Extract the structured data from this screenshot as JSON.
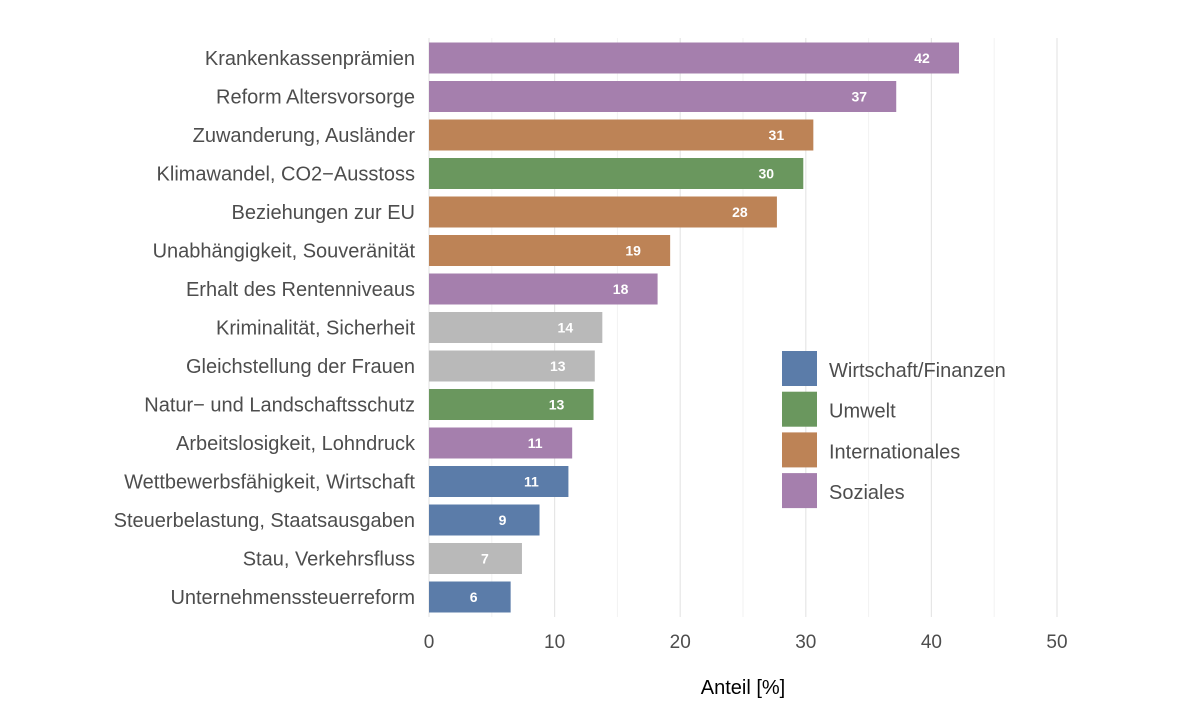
{
  "chart_data": {
    "type": "bar",
    "orientation": "horizontal",
    "title": "",
    "xlabel": "Anteil [%]",
    "ylabel": "",
    "xlim": [
      0,
      50
    ],
    "xticks": [
      0,
      10,
      20,
      30,
      40,
      50
    ],
    "grid": true,
    "legend_position": "right",
    "legend": [
      {
        "name": "Wirtschaft/Finanzen",
        "color": "#5b7ca9"
      },
      {
        "name": "Umwelt",
        "color": "#6a975e"
      },
      {
        "name": "Internationales",
        "color": "#bd8356"
      },
      {
        "name": "Soziales",
        "color": "#a57fad"
      }
    ],
    "other_color": "#b9b9b9",
    "categories": [
      "Krankenkassenprämien",
      "Reform Altersvorsorge",
      "Zuwanderung, Ausländer",
      "Klimawandel, CO2−Ausstoss",
      "Beziehungen zur EU",
      "Unabhängigkeit, Souveränität",
      "Erhalt des Rentenniveaus",
      "Kriminalität, Sicherheit",
      "Gleichstellung der Frauen",
      "Natur− und Landschaftsschutz",
      "Arbeitslosigkeit, Lohndruck",
      "Wettbewerbsfähigkeit, Wirtschaft",
      "Steuerbelastung, Staatsausgaben",
      "Stau, Verkehrsfluss",
      "Unternehmenssteuerreform"
    ],
    "values": [
      42.2,
      37.2,
      30.6,
      29.8,
      27.7,
      19.2,
      18.2,
      13.8,
      13.2,
      13.1,
      11.4,
      11.1,
      8.8,
      7.4,
      6.5
    ],
    "labels": [
      "42",
      "37",
      "31",
      "30",
      "28",
      "19",
      "18",
      "14",
      "13",
      "13",
      "11",
      "11",
      "9",
      "7",
      "6"
    ],
    "groups": [
      "Soziales",
      "Soziales",
      "Internationales",
      "Umwelt",
      "Internationales",
      "Internationales",
      "Soziales",
      "",
      "",
      "Umwelt",
      "Soziales",
      "Wirtschaft/Finanzen",
      "Wirtschaft/Finanzen",
      "",
      "Wirtschaft/Finanzen"
    ]
  }
}
